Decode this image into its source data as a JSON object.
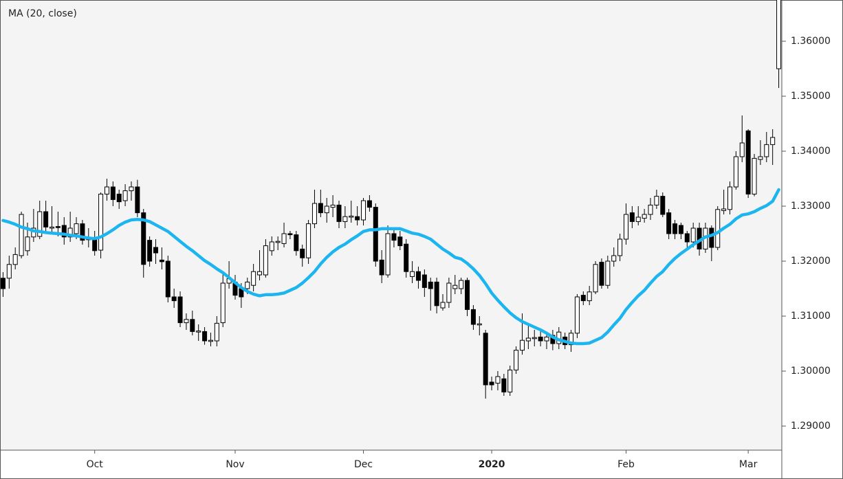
{
  "chart_data": {
    "type": "candlestick",
    "categories": [
      null,
      null,
      null,
      null,
      null,
      null,
      null,
      null,
      null,
      null,
      null,
      null,
      null,
      null,
      null,
      "Oct",
      null,
      null,
      null,
      null,
      null,
      null,
      null,
      null,
      null,
      null,
      null,
      null,
      null,
      null,
      null,
      null,
      null,
      null,
      null,
      null,
      null,
      null,
      "Nov",
      null,
      null,
      null,
      null,
      null,
      null,
      null,
      null,
      null,
      null,
      null,
      null,
      null,
      null,
      null,
      null,
      null,
      null,
      null,
      null,
      "Dec",
      null,
      null,
      null,
      null,
      null,
      null,
      null,
      null,
      null,
      null,
      null,
      null,
      null,
      null,
      null,
      null,
      null,
      null,
      null,
      null,
      "2020",
      null,
      null,
      null,
      null,
      null,
      null,
      null,
      null,
      null,
      null,
      null,
      null,
      null,
      null,
      null,
      null,
      null,
      null,
      null,
      null,
      null,
      "Feb",
      null,
      null,
      null,
      null,
      null,
      null,
      null,
      null,
      null,
      null,
      null,
      null,
      null,
      null,
      null,
      null,
      null,
      null,
      null,
      "Mar",
      null,
      null,
      null,
      null,
      null
    ],
    "open": [
      1.3169,
      1.3169,
      1.3194,
      1.321,
      1.3219,
      1.3244,
      1.3245,
      1.329,
      1.326,
      1.3263,
      1.3265,
      1.3244,
      1.325,
      1.3268,
      1.3239,
      1.324,
      1.322,
      1.3322,
      1.3335,
      1.3322,
      1.331,
      1.3328,
      1.3335,
      1.3288,
      1.3238,
      1.3225,
      1.3202,
      1.32,
      1.3135,
      1.3135,
      1.3088,
      1.3094,
      1.3071,
      1.3072,
      1.3054,
      1.3055,
      1.3088,
      1.316,
      1.3162,
      1.315,
      1.315,
      1.3156,
      1.3175,
      1.3175,
      1.3219,
      1.3234,
      1.3232,
      1.325,
      1.3248,
      1.3222,
      1.3206,
      1.3268,
      1.3305,
      1.3288,
      1.3298,
      1.3302,
      1.3272,
      1.328,
      1.3281,
      1.3275,
      1.331,
      1.3298,
      1.3202,
      1.3175,
      1.325,
      1.3244,
      1.3231,
      1.3172,
      1.3181,
      1.3175,
      1.3162,
      1.3162,
      1.3115,
      1.3125,
      1.315,
      1.315,
      1.3165,
      1.3112,
      1.3084,
      1.3069,
      1.298,
      1.2978,
      1.2986,
      1.2962,
      1.3002,
      1.3038,
      1.3055,
      1.3059,
      1.3062,
      1.3055,
      1.3065,
      1.305,
      1.3062,
      1.3048,
      1.3069,
      1.3138,
      1.3128,
      1.3144,
      1.3198,
      1.3156,
      1.32,
      1.321,
      1.324,
      1.3288,
      1.3272,
      1.3278,
      1.3285,
      1.3302,
      1.3318,
      1.3288,
      1.3268,
      1.3265,
      1.325,
      1.3235,
      1.326,
      1.3222,
      1.326,
      1.3225,
      1.3292,
      1.3294,
      1.3335,
      1.339,
      1.3437,
      1.3322,
      1.3385,
      1.339,
      1.3412,
      1.355
    ],
    "high": [
      1.318,
      1.321,
      1.3225,
      1.329,
      1.327,
      1.3295,
      1.331,
      1.331,
      1.33,
      1.329,
      1.328,
      1.329,
      1.328,
      1.3275,
      1.326,
      1.3255,
      1.3325,
      1.335,
      1.3345,
      1.333,
      1.334,
      1.3345,
      1.3348,
      1.3295,
      1.3245,
      1.324,
      1.3225,
      1.321,
      1.315,
      1.3145,
      1.3105,
      1.311,
      1.3085,
      1.308,
      1.307,
      1.31,
      1.318,
      1.32,
      1.3175,
      1.316,
      1.317,
      1.3195,
      1.322,
      1.324,
      1.3245,
      1.3245,
      1.327,
      1.3255,
      1.3255,
      1.323,
      1.3275,
      1.333,
      1.333,
      1.3315,
      1.332,
      1.331,
      1.33,
      1.331,
      1.33,
      1.3315,
      1.332,
      1.3305,
      1.322,
      1.3265,
      1.326,
      1.3255,
      1.324,
      1.32,
      1.319,
      1.3185,
      1.317,
      1.317,
      1.314,
      1.317,
      1.3175,
      1.317,
      1.317,
      1.312,
      1.31,
      1.3075,
      1.299,
      1.3,
      1.2995,
      1.301,
      1.3045,
      1.3105,
      1.3085,
      1.3075,
      1.3075,
      1.307,
      1.3075,
      1.308,
      1.307,
      1.3075,
      1.314,
      1.3145,
      1.3155,
      1.32,
      1.3205,
      1.321,
      1.3225,
      1.325,
      1.3305,
      1.33,
      1.33,
      1.3295,
      1.3315,
      1.333,
      1.3325,
      1.3295,
      1.3275,
      1.327,
      1.3255,
      1.327,
      1.327,
      1.327,
      1.3265,
      1.33,
      1.333,
      1.3345,
      1.34,
      1.3465,
      1.344,
      1.3395,
      1.342,
      1.3435,
      1.344,
      1.37
    ],
    "low": [
      1.3135,
      1.315,
      1.3185,
      1.3205,
      1.321,
      1.3235,
      1.324,
      1.325,
      1.325,
      1.3245,
      1.323,
      1.3235,
      1.324,
      1.323,
      1.3225,
      1.321,
      1.3205,
      1.331,
      1.33,
      1.3295,
      1.33,
      1.331,
      1.328,
      1.317,
      1.319,
      1.3195,
      1.3185,
      1.3125,
      1.3115,
      1.308,
      1.3075,
      1.3065,
      1.3055,
      1.3048,
      1.3045,
      1.3045,
      1.308,
      1.315,
      1.313,
      1.3115,
      1.314,
      1.3145,
      1.3165,
      1.317,
      1.321,
      1.322,
      1.3225,
      1.324,
      1.321,
      1.319,
      1.3195,
      1.326,
      1.328,
      1.327,
      1.328,
      1.326,
      1.326,
      1.327,
      1.3265,
      1.3265,
      1.329,
      1.319,
      1.316,
      1.317,
      1.3225,
      1.322,
      1.317,
      1.316,
      1.315,
      1.3135,
      1.311,
      1.3105,
      1.311,
      1.3115,
      1.314,
      1.314,
      1.31,
      1.3075,
      1.3065,
      1.295,
      1.2965,
      1.2965,
      1.2955,
      1.2955,
      1.2995,
      1.303,
      1.304,
      1.3045,
      1.3045,
      1.304,
      1.3038,
      1.304,
      1.304,
      1.3035,
      1.306,
      1.312,
      1.312,
      1.314,
      1.315,
      1.315,
      1.319,
      1.32,
      1.323,
      1.326,
      1.3265,
      1.327,
      1.3275,
      1.3295,
      1.328,
      1.324,
      1.324,
      1.324,
      1.3225,
      1.3225,
      1.321,
      1.3215,
      1.32,
      1.322,
      1.3285,
      1.3285,
      1.333,
      1.338,
      1.3315,
      1.3318,
      1.3375,
      1.338,
      1.3375,
      1.3515
    ],
    "close": [
      1.315,
      1.3194,
      1.3212,
      1.3285,
      1.3244,
      1.326,
      1.329,
      1.3262,
      1.3262,
      1.3261,
      1.3244,
      1.326,
      1.3268,
      1.3238,
      1.3241,
      1.3219,
      1.3322,
      1.3335,
      1.3312,
      1.3308,
      1.3328,
      1.3335,
      1.3288,
      1.3194,
      1.32,
      1.3215,
      1.3199,
      1.3135,
      1.3128,
      1.3088,
      1.3094,
      1.3072,
      1.3073,
      1.3055,
      1.3056,
      1.3087,
      1.316,
      1.3168,
      1.3138,
      1.3135,
      1.3162,
      1.3181,
      1.3181,
      1.3228,
      1.3235,
      1.3236,
      1.325,
      1.3248,
      1.3219,
      1.3206,
      1.3268,
      1.3305,
      1.3288,
      1.33,
      1.3302,
      1.3272,
      1.3281,
      1.3282,
      1.3275,
      1.331,
      1.3298,
      1.32,
      1.3175,
      1.325,
      1.3238,
      1.3228,
      1.3181,
      1.3181,
      1.3165,
      1.3152,
      1.315,
      1.3119,
      1.3125,
      1.316,
      1.3156,
      1.3165,
      1.3112,
      1.3085,
      1.3086,
      1.2975,
      1.2975,
      1.299,
      1.2962,
      1.3002,
      1.3038,
      1.3056,
      1.306,
      1.3061,
      1.3055,
      1.3062,
      1.305,
      1.3071,
      1.3048,
      1.3069,
      1.3135,
      1.3128,
      1.3144,
      1.3194,
      1.3156,
      1.32,
      1.321,
      1.324,
      1.3285,
      1.3272,
      1.328,
      1.3285,
      1.3302,
      1.3318,
      1.3285,
      1.325,
      1.325,
      1.325,
      1.3235,
      1.326,
      1.3222,
      1.326,
      1.3225,
      1.3294,
      1.3295,
      1.3335,
      1.339,
      1.3415,
      1.3322,
      1.3387,
      1.339,
      1.3412,
      1.3425,
      1.369
    ],
    "up_color": "#ffffff",
    "down_color": "#000000",
    "series": [
      {
        "name": "MA (20, close)",
        "color": "#1cb5ef",
        "values": [
          1.3274,
          1.3271,
          1.3267,
          1.3262,
          1.3259,
          1.3255,
          1.3254,
          1.3252,
          1.3251,
          1.325,
          1.3249,
          1.3247,
          1.3246,
          1.3244,
          1.3242,
          1.3241,
          1.3244,
          1.325,
          1.3257,
          1.3265,
          1.3271,
          1.3275,
          1.3276,
          1.3275,
          1.3272,
          1.3266,
          1.326,
          1.3254,
          1.3245,
          1.3236,
          1.3227,
          1.3219,
          1.321,
          1.3201,
          1.3194,
          1.3186,
          1.3179,
          1.317,
          1.3161,
          1.3152,
          1.3145,
          1.314,
          1.3137,
          1.3139,
          1.3139,
          1.314,
          1.3142,
          1.3147,
          1.3152,
          1.316,
          1.317,
          1.3181,
          1.3195,
          1.3207,
          1.3217,
          1.3225,
          1.3231,
          1.3239,
          1.3246,
          1.3254,
          1.3257,
          1.3257,
          1.3259,
          1.3259,
          1.3259,
          1.3259,
          1.3255,
          1.3251,
          1.3249,
          1.3245,
          1.324,
          1.3231,
          1.3222,
          1.3215,
          1.3207,
          1.3204,
          1.3196,
          1.3186,
          1.3174,
          1.3159,
          1.3142,
          1.3129,
          1.3117,
          1.3106,
          1.3097,
          1.309,
          1.3085,
          1.308,
          1.3075,
          1.3069,
          1.3062,
          1.3057,
          1.3054,
          1.3051,
          1.305,
          1.305,
          1.3051,
          1.3056,
          1.3061,
          1.3071,
          1.3084,
          1.3096,
          1.3112,
          1.3125,
          1.3137,
          1.3147,
          1.316,
          1.3172,
          1.3181,
          1.3194,
          1.3205,
          1.3214,
          1.3222,
          1.323,
          1.3237,
          1.3244,
          1.3247,
          1.3252,
          1.326,
          1.3267,
          1.3277,
          1.3284,
          1.3286,
          1.329,
          1.3296,
          1.3301,
          1.3309,
          1.333
        ]
      }
    ],
    "ylim": [
      1.285625,
      1.3675
    ],
    "yticks": [
      {
        "value": 1.29,
        "label": "1.29000"
      },
      {
        "value": 1.3,
        "label": "1.30000"
      },
      {
        "value": 1.31,
        "label": "1.31000"
      },
      {
        "value": 1.32,
        "label": "1.32000"
      },
      {
        "value": 1.33,
        "label": "1.33000"
      },
      {
        "value": 1.34,
        "label": "1.34000"
      },
      {
        "value": 1.35,
        "label": "1.35000"
      },
      {
        "value": 1.36,
        "label": "1.36000"
      }
    ]
  }
}
